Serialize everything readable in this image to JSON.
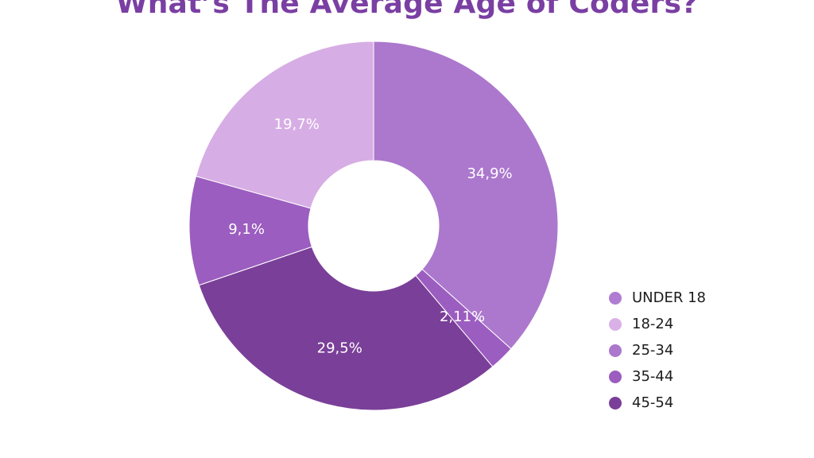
{
  "chart_data": {
    "type": "pie",
    "donut": true,
    "title": "What’s The Average Age of Coders?",
    "slices": [
      {
        "label": "25-34",
        "value": 34.9,
        "display": "34,9%",
        "color": "#ab78cd"
      },
      {
        "label": "35-44",
        "value": 2.11,
        "display": "2,11%",
        "color": "#9b5dbf"
      },
      {
        "label": "45-54",
        "value": 29.5,
        "display": "29,5%",
        "color": "#7a3f98"
      },
      {
        "label": "35-44",
        "value": 9.1,
        "display": "9,1%",
        "color": "#9b5dbf"
      },
      {
        "label": "18-24",
        "value": 19.7,
        "display": "19,7%",
        "color": "#d7ade5"
      }
    ],
    "legend": {
      "position": "bottom-right",
      "entries": [
        {
          "label": "UNDER 18",
          "color": "#b07cd2"
        },
        {
          "label": "18-24",
          "color": "#d9b1e7"
        },
        {
          "label": "25-34",
          "color": "#ab78cd"
        },
        {
          "label": "35-44",
          "color": "#9b5dbf"
        },
        {
          "label": "45-54",
          "color": "#7a3f98"
        }
      ]
    }
  }
}
